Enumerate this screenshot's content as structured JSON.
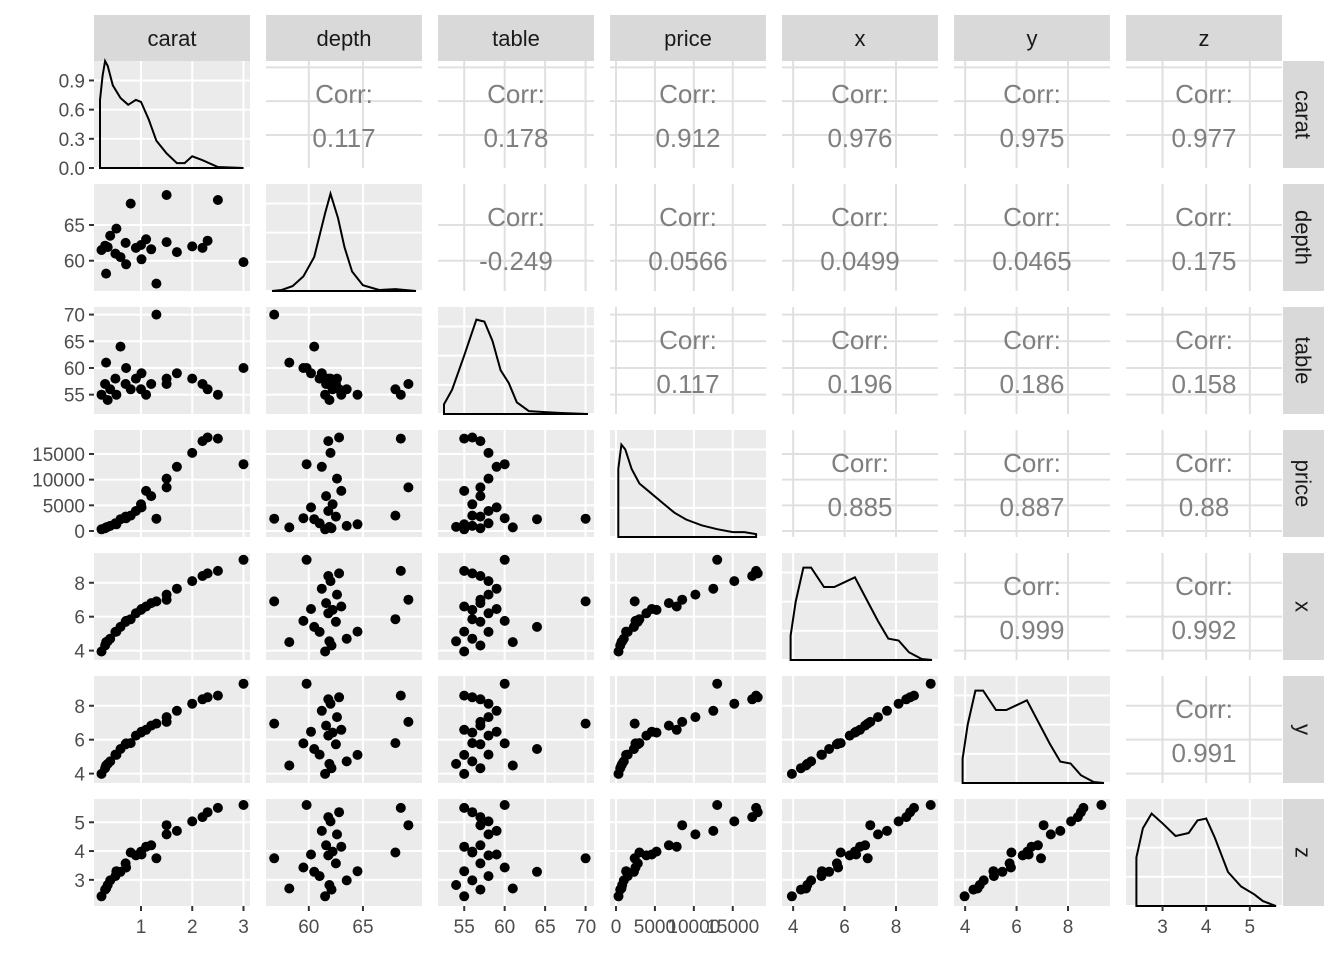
{
  "chart_data": {
    "type": "scatter",
    "kind": "pairs-matrix",
    "variables": [
      "carat",
      "depth",
      "table",
      "price",
      "x",
      "y",
      "z"
    ],
    "corr_label": "Corr:",
    "correlations": [
      {
        "row": "depth",
        "col": "carat",
        "value": "0.117"
      },
      {
        "row": "table",
        "col": "carat",
        "value": "0.178"
      },
      {
        "row": "price",
        "col": "carat",
        "value": "0.912"
      },
      {
        "row": "x",
        "col": "carat",
        "value": "0.976"
      },
      {
        "row": "y",
        "col": "carat",
        "value": "0.975"
      },
      {
        "row": "z",
        "col": "carat",
        "value": "0.977"
      },
      {
        "row": "table",
        "col": "depth",
        "value": "-0.249"
      },
      {
        "row": "price",
        "col": "depth",
        "value": "0.0566"
      },
      {
        "row": "x",
        "col": "depth",
        "value": "0.0499"
      },
      {
        "row": "y",
        "col": "depth",
        "value": "0.0465"
      },
      {
        "row": "z",
        "col": "depth",
        "value": "0.175"
      },
      {
        "row": "price",
        "col": "table",
        "value": "0.117"
      },
      {
        "row": "x",
        "col": "table",
        "value": "0.196"
      },
      {
        "row": "y",
        "col": "table",
        "value": "0.186"
      },
      {
        "row": "z",
        "col": "table",
        "value": "0.158"
      },
      {
        "row": "x",
        "col": "price",
        "value": "0.885"
      },
      {
        "row": "y",
        "col": "price",
        "value": "0.887"
      },
      {
        "row": "z",
        "col": "price",
        "value": "0.88"
      },
      {
        "row": "y",
        "col": "x",
        "value": "0.999"
      },
      {
        "row": "z",
        "col": "x",
        "value": "0.992"
      },
      {
        "row": "z",
        "col": "y",
        "value": "0.991"
      }
    ],
    "axes": {
      "carat": {
        "range": [
          0.2,
          3.01
        ],
        "ticks": [
          1,
          2,
          3
        ],
        "tick_labels": [
          "1",
          "2",
          "3"
        ]
      },
      "depth": {
        "range": [
          56.6,
          69.9
        ],
        "ticks": [
          60,
          65
        ],
        "tick_labels": [
          "60",
          "65"
        ]
      },
      "table": {
        "range": [
          52.5,
          70.3
        ],
        "ticks": [
          55,
          60,
          65,
          70
        ],
        "tick_labels": [
          "55",
          "60",
          "65",
          "70"
        ]
      },
      "price": {
        "range": [
          0,
          18500
        ],
        "ticks": [
          0,
          5000,
          10000,
          15000
        ],
        "tick_labels": [
          "0",
          "5000",
          "10000",
          "15000"
        ]
      },
      "x": {
        "range": [
          3.8,
          9.4
        ],
        "ticks": [
          4,
          6,
          8
        ],
        "tick_labels": [
          "4",
          "6",
          "8"
        ]
      },
      "y": {
        "range": [
          3.8,
          9.4
        ],
        "ticks": [
          4,
          6,
          8
        ],
        "tick_labels": [
          "4",
          "6",
          "8"
        ]
      },
      "z": {
        "range": [
          2.3,
          5.6
        ],
        "ticks": [
          3,
          4,
          5
        ],
        "tick_labels": [
          "3",
          "4",
          "5"
        ]
      }
    },
    "density_axis": {
      "ticks": [
        0.0,
        0.3,
        0.6,
        0.9
      ],
      "tick_labels": [
        "0.0",
        "0.3",
        "0.6",
        "0.9"
      ],
      "range": [
        0,
        1.1
      ]
    },
    "densities": {
      "carat": [
        [
          0.2,
          0.7
        ],
        [
          0.25,
          0.95
        ],
        [
          0.3,
          1.1
        ],
        [
          0.35,
          1.05
        ],
        [
          0.45,
          0.85
        ],
        [
          0.6,
          0.72
        ],
        [
          0.75,
          0.65
        ],
        [
          0.9,
          0.7
        ],
        [
          1.0,
          0.68
        ],
        [
          1.15,
          0.5
        ],
        [
          1.3,
          0.28
        ],
        [
          1.5,
          0.15
        ],
        [
          1.7,
          0.05
        ],
        [
          1.85,
          0.05
        ],
        [
          2.0,
          0.12
        ],
        [
          2.2,
          0.08
        ],
        [
          2.5,
          0.01
        ],
        [
          3.0,
          0.0
        ]
      ],
      "depth": [
        [
          56.6,
          0.0
        ],
        [
          57.5,
          0.01
        ],
        [
          58.5,
          0.05
        ],
        [
          59.5,
          0.15
        ],
        [
          60.5,
          0.35
        ],
        [
          61.5,
          0.8
        ],
        [
          62.0,
          1.0
        ],
        [
          62.7,
          0.75
        ],
        [
          63.3,
          0.45
        ],
        [
          64.0,
          0.2
        ],
        [
          65.0,
          0.06
        ],
        [
          66.5,
          0.01
        ],
        [
          68.0,
          0.02
        ],
        [
          69.9,
          0.0
        ]
      ],
      "table": [
        [
          52.5,
          0.1
        ],
        [
          53.5,
          0.25
        ],
        [
          55.0,
          0.6
        ],
        [
          56.5,
          0.97
        ],
        [
          57.5,
          0.95
        ],
        [
          58.5,
          0.75
        ],
        [
          59.5,
          0.45
        ],
        [
          60.5,
          0.32
        ],
        [
          61.5,
          0.12
        ],
        [
          63.0,
          0.03
        ],
        [
          65.0,
          0.02
        ],
        [
          67.0,
          0.01
        ],
        [
          70.3,
          0.0
        ]
      ],
      "price": [
        [
          300,
          0.7
        ],
        [
          700,
          0.95
        ],
        [
          1200,
          0.9
        ],
        [
          2000,
          0.7
        ],
        [
          3000,
          0.55
        ],
        [
          4500,
          0.45
        ],
        [
          6000,
          0.35
        ],
        [
          7500,
          0.25
        ],
        [
          9000,
          0.18
        ],
        [
          11000,
          0.12
        ],
        [
          13000,
          0.08
        ],
        [
          15000,
          0.05
        ],
        [
          16500,
          0.05
        ],
        [
          18000,
          0.03
        ]
      ],
      "x": [
        [
          3.9,
          0.25
        ],
        [
          4.1,
          0.6
        ],
        [
          4.4,
          0.95
        ],
        [
          4.7,
          0.95
        ],
        [
          5.2,
          0.75
        ],
        [
          5.6,
          0.75
        ],
        [
          6.0,
          0.8
        ],
        [
          6.4,
          0.85
        ],
        [
          6.9,
          0.6
        ],
        [
          7.3,
          0.4
        ],
        [
          7.7,
          0.22
        ],
        [
          8.1,
          0.2
        ],
        [
          8.5,
          0.08
        ],
        [
          9.0,
          0.01
        ],
        [
          9.4,
          0.0
        ]
      ],
      "y": [
        [
          3.9,
          0.25
        ],
        [
          4.1,
          0.6
        ],
        [
          4.4,
          0.95
        ],
        [
          4.7,
          0.95
        ],
        [
          5.2,
          0.75
        ],
        [
          5.6,
          0.75
        ],
        [
          6.0,
          0.8
        ],
        [
          6.4,
          0.85
        ],
        [
          6.9,
          0.6
        ],
        [
          7.3,
          0.4
        ],
        [
          7.7,
          0.22
        ],
        [
          8.1,
          0.2
        ],
        [
          8.5,
          0.08
        ],
        [
          9.0,
          0.01
        ],
        [
          9.4,
          0.0
        ]
      ],
      "z": [
        [
          2.4,
          0.5
        ],
        [
          2.55,
          0.8
        ],
        [
          2.75,
          0.95
        ],
        [
          3.0,
          0.85
        ],
        [
          3.3,
          0.72
        ],
        [
          3.6,
          0.75
        ],
        [
          3.8,
          0.88
        ],
        [
          4.0,
          0.9
        ],
        [
          4.2,
          0.7
        ],
        [
          4.5,
          0.35
        ],
        [
          4.8,
          0.2
        ],
        [
          5.1,
          0.12
        ],
        [
          5.3,
          0.05
        ],
        [
          5.6,
          0.0
        ]
      ]
    },
    "scatter_samples": [
      {
        "carat": 0.23,
        "depth": 61.5,
        "table": 55,
        "price": 326,
        "x": 3.95,
        "y": 3.98,
        "z": 2.43
      },
      {
        "carat": 0.3,
        "depth": 62.1,
        "table": 57,
        "price": 540,
        "x": 4.3,
        "y": 4.32,
        "z": 2.66
      },
      {
        "carat": 0.32,
        "depth": 58.2,
        "table": 61,
        "price": 700,
        "x": 4.5,
        "y": 4.48,
        "z": 2.7
      },
      {
        "carat": 0.4,
        "depth": 63.5,
        "table": 56,
        "price": 1000,
        "x": 4.7,
        "y": 4.72,
        "z": 2.98
      },
      {
        "carat": 0.5,
        "depth": 61.0,
        "table": 58,
        "price": 1500,
        "x": 5.1,
        "y": 5.12,
        "z": 3.13
      },
      {
        "carat": 0.52,
        "depth": 64.5,
        "table": 55,
        "price": 1300,
        "x": 5.12,
        "y": 5.1,
        "z": 3.3
      },
      {
        "carat": 0.7,
        "depth": 62.5,
        "table": 57,
        "price": 2800,
        "x": 5.7,
        "y": 5.73,
        "z": 3.57
      },
      {
        "carat": 0.71,
        "depth": 59.5,
        "table": 60,
        "price": 2500,
        "x": 5.75,
        "y": 5.78,
        "z": 3.43
      },
      {
        "carat": 0.9,
        "depth": 61.8,
        "table": 58,
        "price": 3900,
        "x": 6.2,
        "y": 6.24,
        "z": 3.85
      },
      {
        "carat": 1.0,
        "depth": 62.2,
        "table": 56,
        "price": 5200,
        "x": 6.4,
        "y": 6.42,
        "z": 3.98
      },
      {
        "carat": 1.01,
        "depth": 60.2,
        "table": 59,
        "price": 4600,
        "x": 6.45,
        "y": 6.47,
        "z": 3.88
      },
      {
        "carat": 1.2,
        "depth": 61.6,
        "table": 57,
        "price": 6800,
        "x": 6.8,
        "y": 6.83,
        "z": 4.2
      },
      {
        "carat": 1.5,
        "depth": 62.6,
        "table": 58,
        "price": 10200,
        "x": 7.3,
        "y": 7.33,
        "z": 4.58
      },
      {
        "carat": 1.7,
        "depth": 61.2,
        "table": 59,
        "price": 12500,
        "x": 7.65,
        "y": 7.7,
        "z": 4.7
      },
      {
        "carat": 2.0,
        "depth": 62.0,
        "table": 58,
        "price": 15200,
        "x": 8.1,
        "y": 8.12,
        "z": 5.03
      },
      {
        "carat": 2.2,
        "depth": 61.8,
        "table": 57,
        "price": 17500,
        "x": 8.4,
        "y": 8.38,
        "z": 5.18
      },
      {
        "carat": 2.3,
        "depth": 62.8,
        "table": 56,
        "price": 18200,
        "x": 8.55,
        "y": 8.5,
        "z": 5.35
      },
      {
        "carat": 3.0,
        "depth": 59.8,
        "table": 60,
        "price": 13000,
        "x": 9.35,
        "y": 9.3,
        "z": 5.6
      },
      {
        "carat": 1.5,
        "depth": 69.2,
        "table": 57,
        "price": 8500,
        "x": 7.0,
        "y": 7.05,
        "z": 4.9
      },
      {
        "carat": 1.3,
        "depth": 56.8,
        "table": 70,
        "price": 2400,
        "x": 6.9,
        "y": 6.95,
        "z": 3.75
      },
      {
        "carat": 0.8,
        "depth": 68.0,
        "table": 56,
        "price": 3000,
        "x": 5.85,
        "y": 5.8,
        "z": 3.95
      },
      {
        "carat": 2.5,
        "depth": 68.5,
        "table": 55,
        "price": 18000,
        "x": 8.7,
        "y": 8.6,
        "z": 5.5
      },
      {
        "carat": 0.6,
        "depth": 60.5,
        "table": 64,
        "price": 2300,
        "x": 5.4,
        "y": 5.45,
        "z": 3.28
      },
      {
        "carat": 0.35,
        "depth": 61.9,
        "table": 54,
        "price": 800,
        "x": 4.55,
        "y": 4.57,
        "z": 2.82
      },
      {
        "carat": 1.1,
        "depth": 63.0,
        "table": 55,
        "price": 7800,
        "x": 6.6,
        "y": 6.58,
        "z": 4.15
      }
    ]
  }
}
